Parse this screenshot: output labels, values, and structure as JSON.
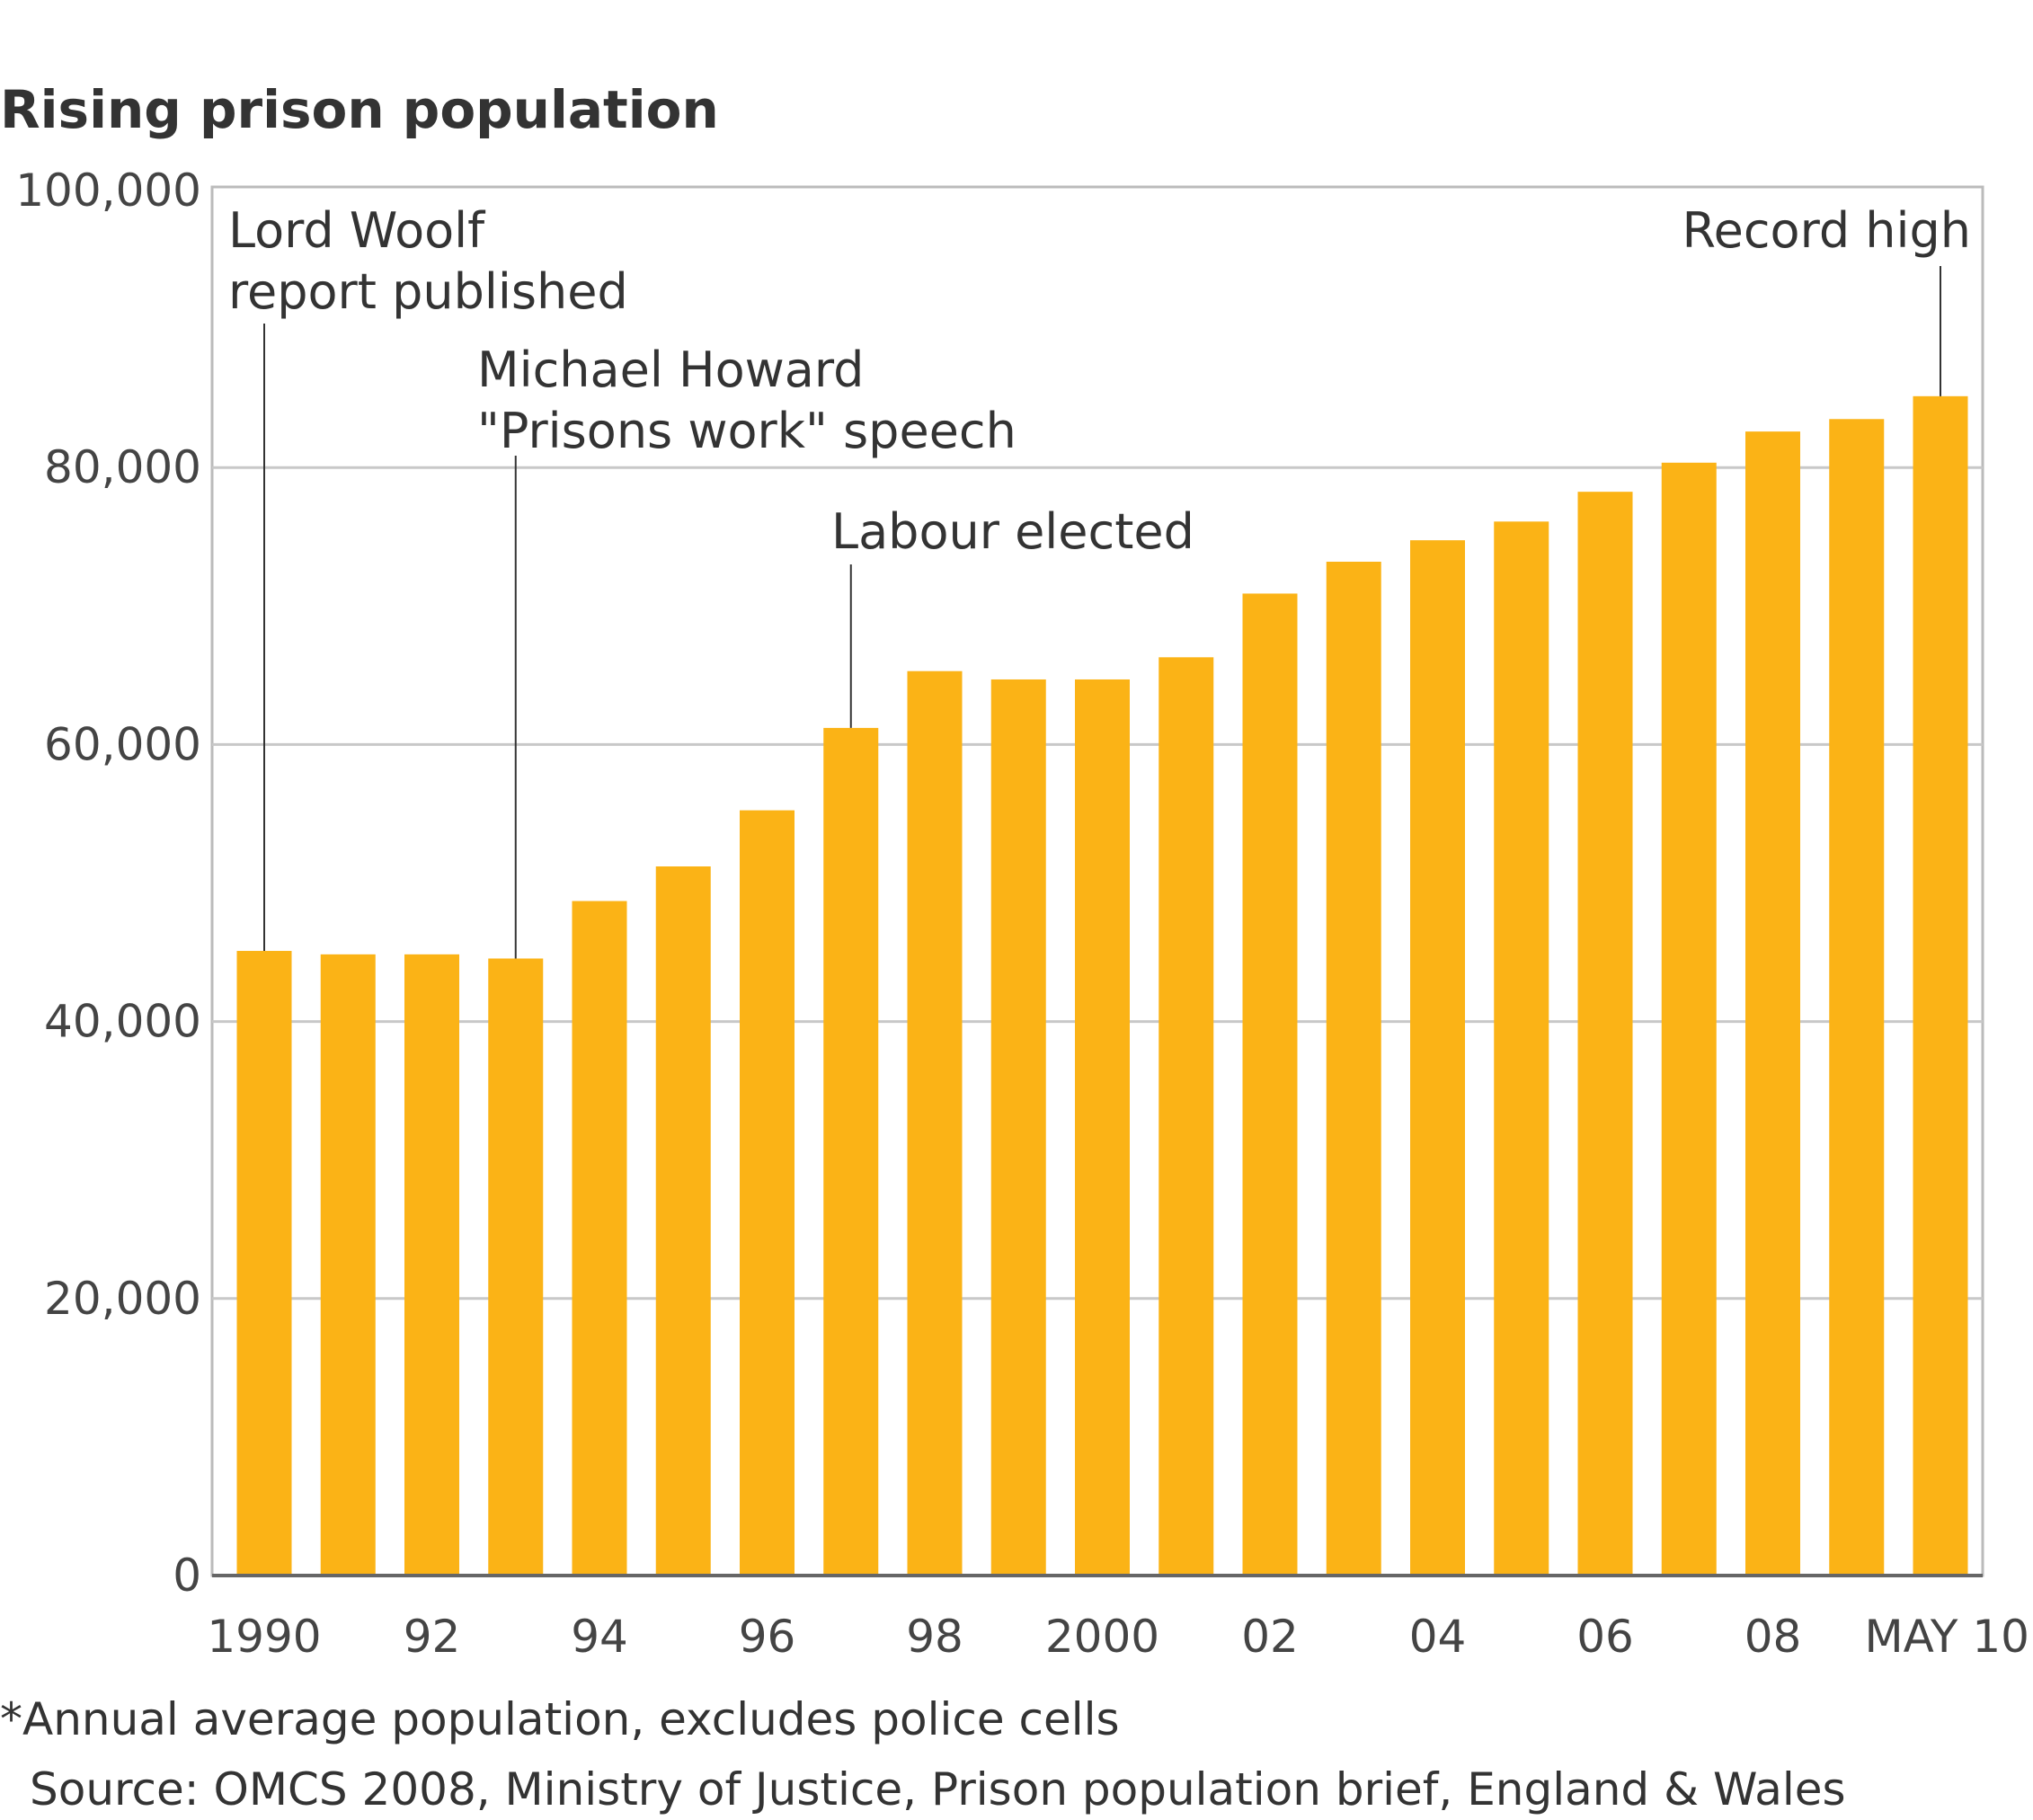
{
  "chart_data": {
    "type": "bar",
    "title": "Rising prison population",
    "categories": [
      "1990",
      "1991",
      "1992",
      "1993",
      "1994",
      "1995",
      "1996",
      "1997",
      "1998",
      "1999",
      "2000",
      "2001",
      "2002",
      "2003",
      "2004",
      "2005",
      "2006",
      "2007",
      "2008",
      "2009",
      "May 2010"
    ],
    "values": [
      45100,
      44850,
      44850,
      44550,
      48700,
      51200,
      55250,
      61200,
      65300,
      64700,
      64700,
      66300,
      70900,
      73200,
      74750,
      76100,
      78250,
      80350,
      82600,
      83500,
      85150
    ],
    "x_tick_labels": [
      {
        "category": "1990",
        "label": "1990"
      },
      {
        "category": "1992",
        "label": "92"
      },
      {
        "category": "1994",
        "label": "94"
      },
      {
        "category": "1996",
        "label": "96"
      },
      {
        "category": "1998",
        "label": "98"
      },
      {
        "category": "2000",
        "label": "2000"
      },
      {
        "category": "2002",
        "label": "02"
      },
      {
        "category": "2004",
        "label": "04"
      },
      {
        "category": "2006",
        "label": "06"
      },
      {
        "category": "2008",
        "label": "08"
      },
      {
        "category": "May 2010",
        "label": "MAY 10"
      }
    ],
    "y_ticks": [
      0,
      20000,
      40000,
      60000,
      80000,
      100000
    ],
    "y_tick_labels": [
      "0",
      "20,000",
      "40,000",
      "60,000",
      "80,000",
      "100,000"
    ],
    "ylim": [
      0,
      100000
    ],
    "xlabel": "",
    "ylabel": "",
    "grid": true,
    "bar_color": "#FBB316",
    "annotations": [
      {
        "category": "1990",
        "lines": [
          "Lord Woolf",
          "report published"
        ]
      },
      {
        "category": "1993",
        "lines": [
          "Michael Howard",
          "\"Prisons work\" speech"
        ]
      },
      {
        "category": "1997",
        "lines": [
          "Labour elected"
        ]
      },
      {
        "category": "May 2010",
        "lines": [
          "Record high"
        ]
      }
    ],
    "footnote": "*Annual average population, excludes police cells",
    "source": "Source: OMCS 2008, Ministry of Justice, Prison population brief, England & Wales"
  }
}
